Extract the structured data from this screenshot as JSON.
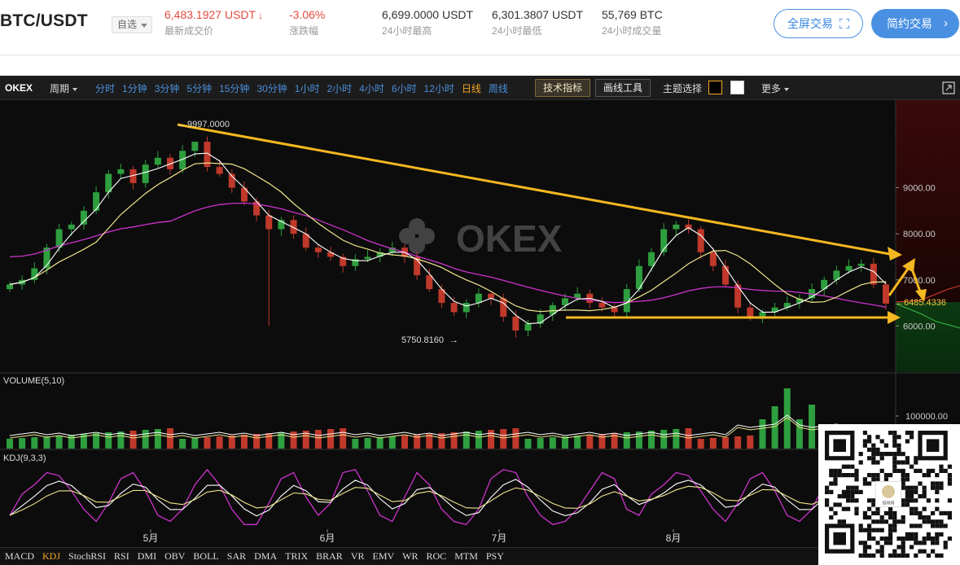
{
  "header": {
    "pair": "BTC/USDT",
    "fav_label": "自选",
    "last_price": "6,483.1927 USDT",
    "last_price_label": "最新成交价",
    "change": "-3.06%",
    "change_label": "涨跌幅",
    "high": "6,699.0000 USDT",
    "high_label": "24小时最高",
    "low": "6,301.3807 USDT",
    "low_label": "24小时最低",
    "volume": "55,769 BTC",
    "volume_label": "24小时成交量",
    "fullscreen_label": "全屏交易",
    "contract_label": "简约交易"
  },
  "toolbar": {
    "logo": "OKEX",
    "period_label": "周期",
    "intervals": [
      {
        "label": "分时",
        "active": false
      },
      {
        "label": "1分钟",
        "active": false
      },
      {
        "label": "3分钟",
        "active": false
      },
      {
        "label": "5分钟",
        "active": false
      },
      {
        "label": "15分钟",
        "active": false
      },
      {
        "label": "30分钟",
        "active": false
      },
      {
        "label": "1小时",
        "active": false
      },
      {
        "label": "2小时",
        "active": false
      },
      {
        "label": "4小时",
        "active": false
      },
      {
        "label": "6小时",
        "active": false
      },
      {
        "label": "12小时",
        "active": false
      },
      {
        "label": "日线",
        "active": true
      },
      {
        "label": "周线",
        "active": false
      }
    ],
    "indicators_label": "技术指标",
    "drawing_label": "画线工具",
    "theme_label": "主题选择",
    "more_label": "更多"
  },
  "chart_data": {
    "type": "candlestick",
    "watermark": "OKEX",
    "x_ticks": [
      "5月",
      "6月",
      "7月",
      "8月"
    ],
    "y_ticks": [
      "9000.00",
      "8000.00",
      "7000.00",
      "6000.00"
    ],
    "ylim": [
      5000,
      10900
    ],
    "annotations": {
      "high": "9997.0000",
      "low": "5750.8160",
      "last": "6485.4336"
    },
    "ma_colors": {
      "ma5": "#ffffff",
      "ma30": "#f0e68c",
      "ma60": "#cc33cc"
    },
    "up_color": "#2e9e3e",
    "down_color": "#c0392b",
    "trendline_color": "#f5b820",
    "closes_approx": [
      6900,
      7000,
      7250,
      7700,
      8100,
      8200,
      8500,
      8900,
      9300,
      9400,
      9100,
      9500,
      9650,
      9400,
      9800,
      9997,
      9450,
      9300,
      9000,
      8700,
      8400,
      8100,
      8300,
      8000,
      7700,
      7600,
      7500,
      7300,
      7450,
      7500,
      7600,
      7700,
      7500,
      7100,
      6800,
      6500,
      6300,
      6500,
      6700,
      6600,
      6200,
      5900,
      6050,
      6250,
      6450,
      6600,
      6700,
      6500,
      6400,
      6300,
      6800,
      7300,
      7600,
      8100,
      8200,
      8100,
      7600,
      7300,
      6900,
      6400,
      6200,
      6300,
      6400,
      6500,
      6600,
      6800,
      7000,
      7200,
      7300,
      7350,
      6900,
      6485
    ]
  },
  "volume_panel": {
    "label": "VOLUME(5,10)",
    "y_tick": "100000.00"
  },
  "kdj_panel": {
    "label": "KDJ(9,3,3)"
  },
  "indicator_tabs": [
    {
      "label": "MACD",
      "active": false
    },
    {
      "label": "KDJ",
      "active": true
    },
    {
      "label": "StochRSI",
      "active": false
    },
    {
      "label": "RSI",
      "active": false
    },
    {
      "label": "DMI",
      "active": false
    },
    {
      "label": "OBV",
      "active": false
    },
    {
      "label": "BOLL",
      "active": false
    },
    {
      "label": "SAR",
      "active": false
    },
    {
      "label": "DMA",
      "active": false
    },
    {
      "label": "TRIX",
      "active": false
    },
    {
      "label": "BRAR",
      "active": false
    },
    {
      "label": "VR",
      "active": false
    },
    {
      "label": "EMV",
      "active": false
    },
    {
      "label": "WR",
      "active": false
    },
    {
      "label": "ROC",
      "active": false
    },
    {
      "label": "MTM",
      "active": false
    },
    {
      "label": "PSY",
      "active": false
    }
  ],
  "qr": {
    "caption": "链得得"
  }
}
